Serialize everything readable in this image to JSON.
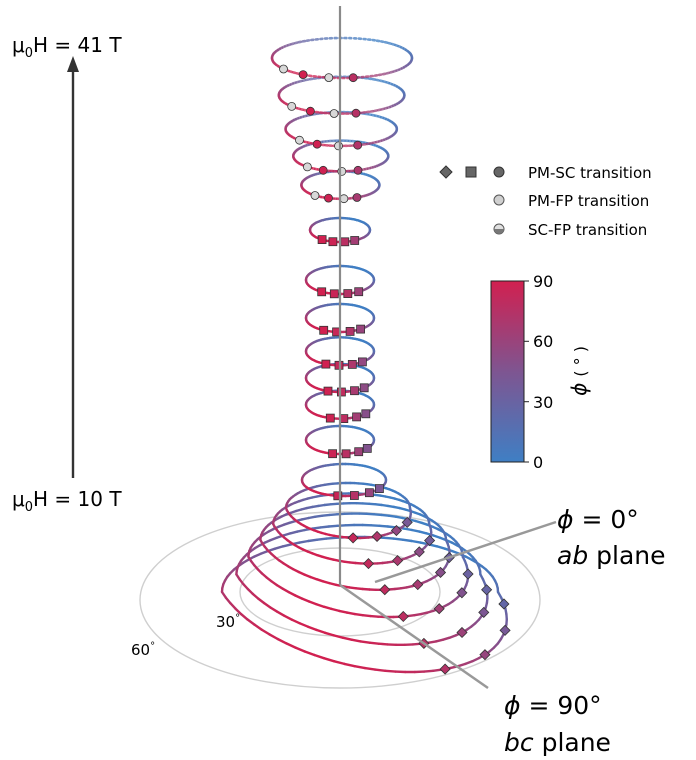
{
  "chart_data": {
    "type": "scatter",
    "title": "",
    "field_axis": {
      "top_label_prefix": "μ",
      "top_label_sub": "0",
      "top_label_rest": "H = 41 T",
      "bottom_label_prefix": "μ",
      "bottom_label_sub": "0",
      "bottom_label_rest": "H = 10 T",
      "range_T": [
        10,
        41
      ]
    },
    "polar_tick_labels": [
      {
        "text": "30",
        "unit": "°"
      },
      {
        "text": "60",
        "unit": "°"
      }
    ],
    "annotations": {
      "phi0": {
        "symbol": "ϕ",
        "value": " = 0°",
        "plane_italic": "ab",
        "plane_rest": " plane"
      },
      "phi90": {
        "symbol": "ϕ",
        "value": " = 90°",
        "plane_italic": "bc",
        "plane_rest": " plane"
      }
    },
    "legend": {
      "placement": "top-right",
      "entries": [
        {
          "markers": [
            "diamond",
            "square",
            "circle"
          ],
          "label": "PM-SC transition",
          "fill": "#666666"
        },
        {
          "markers": [
            "circle"
          ],
          "label": "PM-FP transition",
          "fill": "#cccccc"
        },
        {
          "markers": [
            "half-circle"
          ],
          "label": "SC-FP transition",
          "fill": "#aaaaaa"
        }
      ]
    },
    "colorbar": {
      "label": "ϕ (°)",
      "label_symbol": "ϕ",
      "label_unit": "( ° )",
      "range": [
        0,
        90
      ],
      "ticks": [
        "0",
        "30",
        "60",
        "90"
      ],
      "color_low": "#3f7fc4",
      "color_mid": "#7e5591",
      "color_high": "#d12050"
    },
    "loops": [
      {
        "field": 10.0,
        "style": "solid"
      },
      {
        "field": 10.8,
        "style": "solid"
      },
      {
        "field": 11.6,
        "style": "solid"
      },
      {
        "field": 12.4,
        "style": "solid"
      },
      {
        "field": 13.2,
        "style": "solid"
      },
      {
        "field": 14.0,
        "style": "solid"
      },
      {
        "field": 15.5,
        "style": "solid"
      },
      {
        "field": 18.0,
        "style": "solid"
      },
      {
        "field": 20.5,
        "style": "solid"
      },
      {
        "field": 23.0,
        "style": "solid"
      },
      {
        "field": 25.5,
        "style": "solid"
      },
      {
        "field": 28.0,
        "style": "solid"
      },
      {
        "field": 30.0,
        "style": "solid"
      },
      {
        "field": 32.0,
        "style": "solid"
      },
      {
        "field": 33.8,
        "style": "dotted"
      },
      {
        "field": 35.6,
        "style": "dotted"
      },
      {
        "field": 37.4,
        "style": "dotted"
      },
      {
        "field": 39.2,
        "style": "dotted"
      },
      {
        "field": 41.0,
        "style": "dotted"
      }
    ]
  }
}
